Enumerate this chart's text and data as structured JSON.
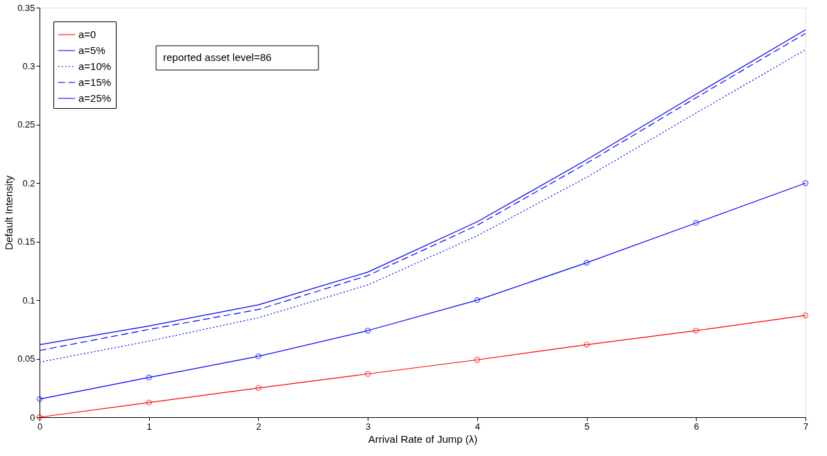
{
  "chart_data": {
    "type": "line",
    "xlabel": "Arrival Rate of Jump (λ)",
    "ylabel": "Default Intensity",
    "annotations": [
      "reported asset level=86"
    ],
    "x": [
      0,
      1,
      2,
      3,
      4,
      5,
      6,
      7
    ],
    "xlim": [
      0,
      7
    ],
    "xticks": [
      0,
      1,
      2,
      3,
      4,
      5,
      6,
      7
    ],
    "ylim": [
      0,
      0.35
    ],
    "yticks": [
      0,
      0.05,
      0.1,
      0.15,
      0.2,
      0.25,
      0.3,
      0.35
    ],
    "grid": false,
    "legend": "top left",
    "series": [
      {
        "name": "a=0",
        "color": "#ff0000",
        "marker": "circle",
        "line_style": "solid",
        "values": [
          0,
          0.0125,
          0.025,
          0.037,
          0.049,
          0.062,
          0.074,
          0.087
        ]
      },
      {
        "name": "a=5%",
        "color": "#0000ff",
        "marker": "circle",
        "line_style": "solid",
        "values": [
          0.0155,
          0.034,
          0.052,
          0.074,
          0.1,
          0.132,
          0.166,
          0.2
        ]
      },
      {
        "name": "a=10%",
        "color": "#0000ff",
        "marker": "none",
        "line_style": "dotted",
        "values": [
          0.047,
          0.065,
          0.085,
          0.113,
          0.155,
          0.205,
          0.26,
          0.314
        ]
      },
      {
        "name": "a=15%",
        "color": "#0000ff",
        "marker": "none",
        "line_style": "dashed",
        "values": [
          0.057,
          0.075,
          0.092,
          0.121,
          0.164,
          0.217,
          0.273,
          0.328
        ]
      },
      {
        "name": "a=25%",
        "color": "#0000ff",
        "marker": "none",
        "line_style": "solid",
        "values": [
          0.062,
          0.078,
          0.096,
          0.124,
          0.167,
          0.22,
          0.276,
          0.331
        ]
      }
    ]
  }
}
